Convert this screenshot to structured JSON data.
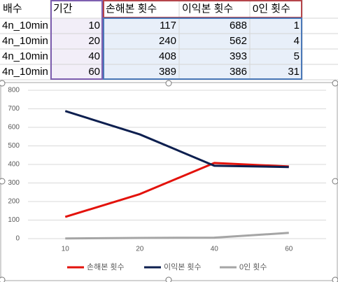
{
  "table": {
    "header": [
      "배수",
      "기간",
      "손해본 횟수",
      "이익본 횟수",
      "0인 횟수"
    ],
    "rows": [
      [
        "4n_10min",
        10,
        117,
        688,
        1
      ],
      [
        "4n_10min",
        20,
        240,
        562,
        4
      ],
      [
        "4n_10min",
        40,
        408,
        393,
        5
      ],
      [
        "4n_10min",
        60,
        389,
        386,
        31
      ]
    ]
  },
  "chart_data": {
    "type": "line",
    "categories": [
      "10",
      "20",
      "40",
      "60"
    ],
    "series": [
      {
        "name": "손해본 횟수",
        "color": "#e3120b",
        "values": [
          117,
          240,
          408,
          389
        ]
      },
      {
        "name": "이익본 횟수",
        "color": "#0d1f4f",
        "values": [
          688,
          562,
          393,
          386
        ]
      },
      {
        "name": "0인 횟수",
        "color": "#a5a5a5",
        "values": [
          1,
          4,
          5,
          31
        ]
      }
    ],
    "ylim": [
      0,
      800
    ],
    "yticks": [
      0,
      100,
      200,
      300,
      400,
      500,
      600,
      700,
      800
    ],
    "grid": true,
    "legend": "bottom"
  }
}
